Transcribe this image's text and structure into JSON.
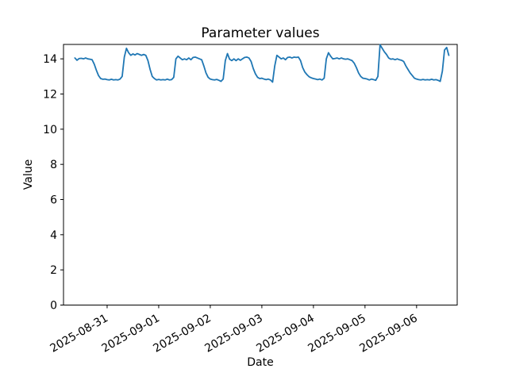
{
  "chart_data": {
    "type": "line",
    "title": "Parameter values",
    "xlabel": "Date",
    "ylabel": "Value",
    "line_color": "#1f77b4",
    "axis_color": "#000000",
    "background_color": "#ffffff",
    "grid": false,
    "legend_position": "none",
    "x_start": "2025-08-30 09:00",
    "x_step_hours": 1,
    "x_tick_hours": [
      24,
      48,
      72,
      96,
      120,
      144,
      168
    ],
    "x_tick_labels": [
      "2025-08-31",
      "2025-09-01",
      "2025-09-02",
      "2025-09-03",
      "2025-09-04",
      "2025-09-05",
      "2025-09-06"
    ],
    "x_tick_rotation_deg": 30,
    "xlim_hours": [
      3.7,
      186.9
    ],
    "y_ticks": [
      "0",
      "2",
      "4",
      "6",
      "8",
      "10",
      "12",
      "14"
    ],
    "y_tick_values": [
      0,
      2,
      4,
      6,
      8,
      10,
      12,
      14
    ],
    "ylim": [
      0,
      14.82
    ],
    "series": [
      {
        "name": "parameter-values",
        "start_hour_offset": 9,
        "values": [
          14.05,
          13.92,
          14.02,
          14.03,
          14.0,
          14.05,
          14.0,
          13.98,
          13.95,
          13.7,
          13.35,
          13.05,
          12.88,
          12.84,
          12.85,
          12.82,
          12.8,
          12.84,
          12.8,
          12.82,
          12.8,
          12.85,
          13.0,
          14.1,
          14.6,
          14.35,
          14.2,
          14.28,
          14.22,
          14.3,
          14.25,
          14.2,
          14.25,
          14.2,
          13.9,
          13.4,
          13.0,
          12.88,
          12.8,
          12.83,
          12.8,
          12.82,
          12.8,
          12.85,
          12.8,
          12.82,
          12.95,
          14.0,
          14.15,
          14.05,
          13.95,
          14.0,
          13.95,
          14.05,
          13.95,
          14.08,
          14.1,
          14.05,
          14.0,
          13.95,
          13.6,
          13.2,
          12.95,
          12.85,
          12.82,
          12.8,
          12.83,
          12.78,
          12.72,
          12.85,
          13.9,
          14.3,
          13.98,
          13.9,
          14.0,
          13.9,
          14.0,
          13.92,
          14.0,
          14.08,
          14.1,
          14.05,
          13.85,
          13.45,
          13.15,
          12.95,
          12.88,
          12.9,
          12.85,
          12.82,
          12.85,
          12.8,
          12.68,
          13.6,
          14.2,
          14.1,
          14.0,
          14.05,
          13.95,
          14.08,
          14.1,
          14.05,
          14.1,
          14.08,
          14.1,
          13.9,
          13.5,
          13.25,
          13.1,
          12.98,
          12.92,
          12.88,
          12.85,
          12.82,
          12.85,
          12.8,
          12.9,
          14.0,
          14.35,
          14.15,
          14.0,
          14.02,
          14.05,
          14.0,
          14.05,
          14.0,
          13.98,
          14.0,
          13.95,
          13.9,
          13.75,
          13.5,
          13.2,
          13.0,
          12.9,
          12.88,
          12.85,
          12.8,
          12.85,
          12.82,
          12.78,
          13.0,
          14.8,
          14.6,
          14.4,
          14.25,
          14.05,
          13.98,
          14.0,
          13.95,
          14.0,
          13.95,
          13.92,
          13.85,
          13.6,
          13.4,
          13.2,
          13.05,
          12.9,
          12.85,
          12.82,
          12.8,
          12.83,
          12.8,
          12.82,
          12.8,
          12.84,
          12.8,
          12.82,
          12.78,
          12.72,
          13.3,
          14.5,
          14.65,
          14.2
        ]
      }
    ]
  }
}
